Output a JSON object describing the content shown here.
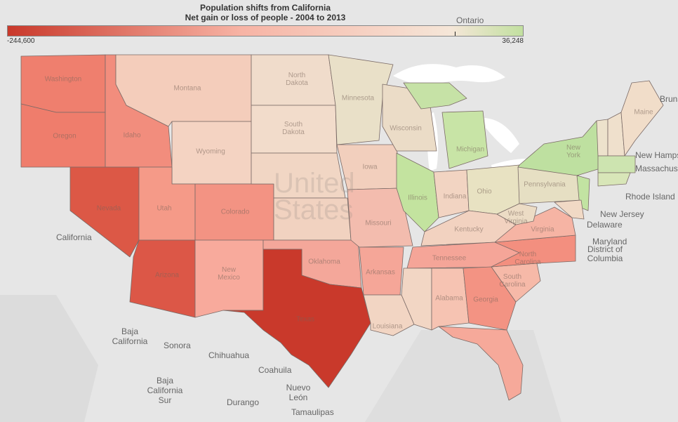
{
  "legend": {
    "title_line1": "Population shifts from California",
    "title_line2": "Net gain or loss of people - 2004 to 2013",
    "min_label": "-244,600",
    "max_label": "36,248",
    "min_value": -244600,
    "max_value": 36248,
    "color_min": "#c9392b",
    "color_mid": "#f5e6d8",
    "color_max": "#c2e0a0"
  },
  "basemap_labels": {
    "ontario": "Ontario",
    "california": "California",
    "baja_california": "Baja California",
    "baja_california_sur": "Baja California Sur",
    "sonora": "Sonora",
    "chihuahua": "Chihuahua",
    "coahuila": "Coahuila",
    "nuevo_leon": "Nuevo León",
    "durango": "Durango",
    "tamaulipas": "Tamaulipas",
    "new_hampshire": "New Hamps",
    "massachusetts": "Massachus",
    "rhode_island": "Rhode Island",
    "new_jersey": "New Jersey",
    "delaware": "Delaware",
    "maryland": "Maryland",
    "district_of_columbia": "District of Columbia",
    "new_brunswick": "Bruns",
    "united_states": "United States"
  },
  "states": {
    "washington": "Washington",
    "oregon": "Oregon",
    "idaho": "Idaho",
    "montana": "Montana",
    "wyoming": "Wyoming",
    "nevada": "Nevada",
    "utah": "Utah",
    "colorado": "Colorado",
    "arizona": "Arizona",
    "new_mexico": "New Mexico",
    "north_dakota": "North Dakota",
    "south_dakota": "South Dakota",
    "texas": "Texas",
    "oklahoma": "Oklahoma",
    "minnesota": "Minnesota",
    "iowa": "Iowa",
    "missouri": "Missouri",
    "arkansas": "Arkansas",
    "louisiana": "Louisiana",
    "wisconsin": "Wisconsin",
    "illinois": "Illinois",
    "michigan": "Michigan",
    "indiana": "Indiana",
    "ohio": "Ohio",
    "kentucky": "Kentucky",
    "tennessee": "Tennessee",
    "alabama": "Alabama",
    "georgia": "Georgia",
    "south_carolina": "South Carolina",
    "north_carolina": "North Carolina",
    "virginia": "Virginia",
    "west_virginia": "West Virginia",
    "pennsylvania": "Pennsylvania",
    "new_york": "New York",
    "maine": "Maine"
  }
}
